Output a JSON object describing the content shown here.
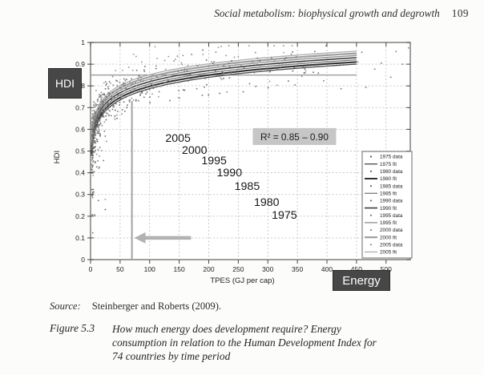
{
  "page": {
    "running_head": "Social metabolism: biophysical growth and degrowth",
    "page_number": "109",
    "source_label": "Source:",
    "source_text": "Steinberger and Roberts (2009).",
    "figure_label": "Figure 5.3",
    "caption_lines": [
      "How much energy does development require? Energy",
      "consumption in relation to the Human Development Index for",
      "74 countries by time period"
    ]
  },
  "chart_data": {
    "type": "scatter",
    "title": "",
    "xlabel": "TPES (GJ per cap)",
    "ylabel": "HDI",
    "xlim": [
      0,
      541
    ],
    "ylim": [
      0,
      1
    ],
    "grid": true,
    "legend_position": "inside-right",
    "axis_badges": {
      "y": "HDI",
      "x": "Energy"
    },
    "xticks": [
      {
        "v": 0,
        "label": "0"
      },
      {
        "v": 50,
        "label": "50"
      },
      {
        "v": 100,
        "label": "100"
      },
      {
        "v": 150,
        "label": "150"
      },
      {
        "v": 200,
        "label": "200"
      },
      {
        "v": 250,
        "label": "250"
      },
      {
        "v": 300,
        "label": "300"
      },
      {
        "v": 350,
        "label": "350"
      },
      {
        "v": 400,
        "label": "400"
      },
      {
        "v": 450,
        "label": "450"
      },
      {
        "v": 500,
        "label": "500"
      }
    ],
    "yticks": [
      {
        "v": 0,
        "label": "0"
      },
      {
        "v": 0.1,
        "label": "0.1"
      },
      {
        "v": 0.2,
        "label": "0.2"
      },
      {
        "v": 0.3,
        "label": "0.3"
      },
      {
        "v": 0.4,
        "label": "0.4"
      },
      {
        "v": 0.5,
        "label": "0.5"
      },
      {
        "v": 0.6,
        "label": "0.6"
      },
      {
        "v": 0.7,
        "label": "0.7"
      },
      {
        "v": 0.8,
        "label": "0.8"
      },
      {
        "v": 0.9,
        "label": "0.9"
      },
      {
        "v": 1,
        "label": "1"
      }
    ],
    "r_squared": {
      "x": 345,
      "y": 0.565,
      "label": "R² = 0.85 – 0.90"
    },
    "year_annotations": [
      {
        "label": "2005",
        "x": 148,
        "y": 0.561
      },
      {
        "label": "2000",
        "x": 176,
        "y": 0.505
      },
      {
        "label": "1995",
        "x": 209,
        "y": 0.457
      },
      {
        "label": "1990",
        "x": 235,
        "y": 0.402
      },
      {
        "label": "1985",
        "x": 265,
        "y": 0.339
      },
      {
        "label": "1980",
        "x": 298,
        "y": 0.266
      },
      {
        "label": "1975",
        "x": 328,
        "y": 0.207
      }
    ],
    "reference_lines": {
      "vertical": {
        "x": 70,
        "y_top": 0.73
      },
      "horizontal": {
        "y": 0.85,
        "x_max": 450
      }
    },
    "arrow": {
      "y": 0.1,
      "x_tail": 170,
      "x_head": 78,
      "direction": "left"
    },
    "series": [
      {
        "year": "1975",
        "data_label": "1975 data",
        "fit_label": "1975 fit",
        "line_color": "#4a4a4a",
        "line_width": 1.3,
        "marker_color": "#585858",
        "fit": {
          "type": "log",
          "a": 0.442,
          "b": 0.075
        },
        "x_fit_range": [
          1.6,
          450
        ]
      },
      {
        "year": "1980",
        "data_label": "1980 data",
        "fit_label": "1980 fit",
        "line_color": "#2f2f2f",
        "line_width": 2.0,
        "marker_color": "#5e5e5e",
        "fit": {
          "type": "log",
          "a": 0.455,
          "b": 0.0745
        },
        "x_fit_range": [
          1.6,
          450
        ]
      },
      {
        "year": "1985",
        "data_label": "1985 data",
        "fit_label": "1985 fit",
        "line_color": "#6f6f6f",
        "line_width": 1.2,
        "marker_color": "#666666",
        "fit": {
          "type": "log",
          "a": 0.468,
          "b": 0.074
        },
        "x_fit_range": [
          1.6,
          450
        ]
      },
      {
        "year": "1990",
        "data_label": "1990 data",
        "fit_label": "1990 fit",
        "line_color": "#3d3d3d",
        "line_width": 1.6,
        "marker_color": "#6f6f6f",
        "fit": {
          "type": "log",
          "a": 0.481,
          "b": 0.0735
        },
        "x_fit_range": [
          1.6,
          450
        ]
      },
      {
        "year": "1995",
        "data_label": "1995 data",
        "fit_label": "1995 fit",
        "line_color": "#8c8c8c",
        "line_width": 1.3,
        "marker_color": "#7a7a7a",
        "fit": {
          "type": "log",
          "a": 0.494,
          "b": 0.073
        },
        "x_fit_range": [
          1.6,
          450
        ]
      },
      {
        "year": "2000",
        "data_label": "2000 data",
        "fit_label": "2000 fit",
        "line_color": "#9f9f9f",
        "line_width": 2.2,
        "marker_color": "#868686",
        "fit": {
          "type": "log",
          "a": 0.507,
          "b": 0.0725
        },
        "x_fit_range": [
          1.6,
          450
        ]
      },
      {
        "year": "2005",
        "data_label": "2005 data",
        "fit_label": "2005 fit",
        "line_color": "#b2b2b2",
        "line_width": 1.4,
        "marker_color": "#929292",
        "fit": {
          "type": "log",
          "a": 0.52,
          "b": 0.072
        },
        "x_fit_range": [
          1.6,
          450
        ]
      }
    ],
    "scatter_synthesis": {
      "seed": 20090515,
      "points_per_series": 72,
      "x_log_min": 2.4,
      "x_log_max": 400,
      "y_noise": 0.052,
      "low_tail_points": 13,
      "low_tail_x_max": 34
    },
    "extra_points": [
      [
        538,
        0.975
      ],
      [
        517,
        0.958
      ],
      [
        459,
        0.955
      ],
      [
        492,
        0.905
      ],
      [
        528,
        0.9
      ],
      [
        466,
        0.793
      ],
      [
        424,
        0.787
      ],
      [
        481,
        0.877
      ],
      [
        508,
        0.84
      ],
      [
        452,
        0.91
      ]
    ]
  }
}
